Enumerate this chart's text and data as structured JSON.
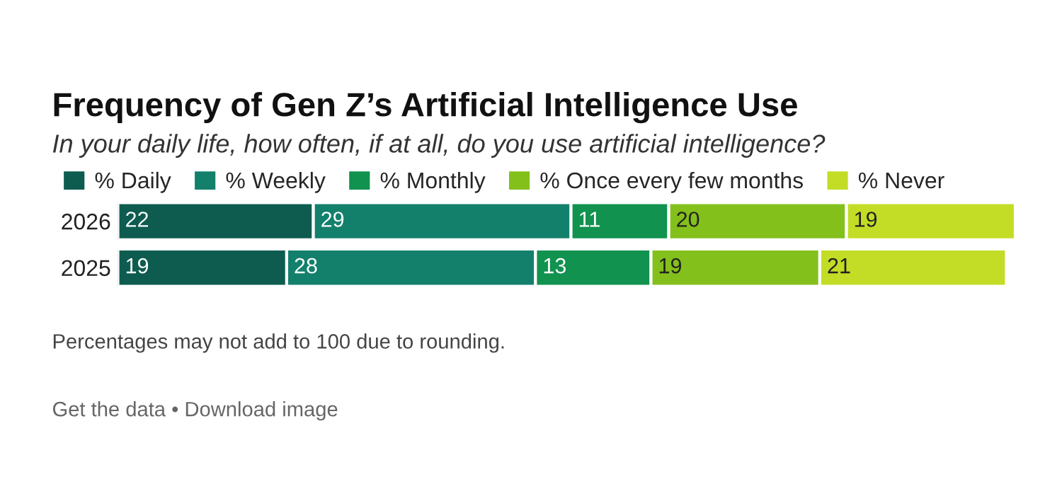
{
  "chart_data": {
    "type": "bar",
    "orientation": "horizontal",
    "stacked": true,
    "data_labels": true,
    "legend": "top left",
    "grid": false,
    "title": "Frequency of Gen Z’s Artificial Intelligence Use",
    "subtitle": "In your daily life, how often, if at all, do you use artificial intelligence?",
    "categories": [
      "2026",
      "2025"
    ],
    "series": [
      {
        "name": "% Daily",
        "color": "#0d5c4f",
        "values": [
          22,
          19
        ]
      },
      {
        "name": "% Weekly",
        "color": "#13806c",
        "values": [
          29,
          28
        ]
      },
      {
        "name": "% Monthly",
        "color": "#11924f",
        "values": [
          11,
          13
        ]
      },
      {
        "name": "% Once every few months",
        "color": "#84c01c",
        "values": [
          20,
          19
        ]
      },
      {
        "name": "% Never",
        "color": "#c3dd26",
        "values": [
          19,
          21
        ]
      }
    ],
    "annotations": [
      "Percentages may not add to 100 due to rounding.",
      "Get the data • Download image"
    ]
  }
}
